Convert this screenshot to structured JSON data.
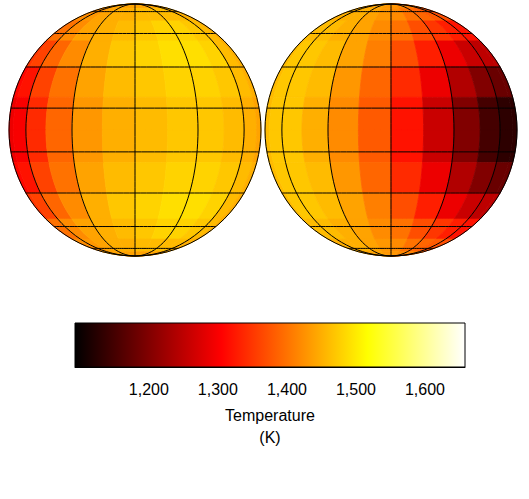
{
  "chart_data": {
    "type": "globe_map",
    "grid": true,
    "tick_labels": "x",
    "lon_edges": [
      -90,
      -75,
      -60,
      -45,
      -30,
      -15,
      0,
      15,
      30,
      45,
      60,
      75,
      90
    ],
    "lat_edges": [
      90,
      75,
      60,
      45,
      30,
      15,
      0,
      -15,
      -30,
      -45,
      -60,
      -75,
      -90
    ],
    "globes": [
      {
        "cells": [
          [
            1440,
            1440,
            1440,
            1440,
            1440,
            1440,
            1440,
            1440,
            1440,
            1440,
            1440,
            1440
          ],
          [
            1420,
            1420,
            1430,
            1440,
            1450,
            1450,
            1460,
            1460,
            1460,
            1460,
            1450,
            1450
          ],
          [
            1390,
            1400,
            1420,
            1440,
            1450,
            1460,
            1470,
            1480,
            1480,
            1470,
            1460,
            1450
          ],
          [
            1350,
            1360,
            1390,
            1420,
            1450,
            1470,
            1480,
            1490,
            1490,
            1480,
            1460,
            1450
          ],
          [
            1310,
            1320,
            1360,
            1400,
            1440,
            1460,
            1470,
            1480,
            1480,
            1470,
            1460,
            1450
          ],
          [
            1290,
            1300,
            1340,
            1390,
            1430,
            1450,
            1460,
            1470,
            1470,
            1460,
            1450,
            1440
          ],
          [
            1290,
            1300,
            1340,
            1390,
            1430,
            1450,
            1460,
            1470,
            1470,
            1460,
            1450,
            1440
          ],
          [
            1310,
            1320,
            1360,
            1400,
            1440,
            1460,
            1470,
            1480,
            1480,
            1470,
            1460,
            1450
          ],
          [
            1350,
            1360,
            1390,
            1420,
            1450,
            1470,
            1480,
            1490,
            1490,
            1480,
            1460,
            1450
          ],
          [
            1390,
            1400,
            1420,
            1440,
            1450,
            1460,
            1470,
            1480,
            1480,
            1470,
            1460,
            1450
          ],
          [
            1420,
            1420,
            1430,
            1440,
            1450,
            1450,
            1460,
            1460,
            1460,
            1460,
            1450,
            1450
          ],
          [
            1440,
            1440,
            1440,
            1440,
            1440,
            1440,
            1440,
            1440,
            1440,
            1440,
            1440,
            1440
          ]
        ]
      },
      {
        "cells": [
          [
            1440,
            1440,
            1440,
            1440,
            1440,
            1430,
            1430,
            1420,
            1420,
            1410,
            1400,
            1400
          ],
          [
            1450,
            1450,
            1450,
            1450,
            1440,
            1430,
            1420,
            1400,
            1390,
            1380,
            1370,
            1370
          ],
          [
            1460,
            1460,
            1460,
            1450,
            1440,
            1420,
            1400,
            1370,
            1350,
            1330,
            1320,
            1320
          ],
          [
            1460,
            1470,
            1470,
            1460,
            1440,
            1410,
            1370,
            1330,
            1290,
            1260,
            1250,
            1250
          ],
          [
            1460,
            1470,
            1470,
            1460,
            1430,
            1390,
            1340,
            1290,
            1240,
            1200,
            1180,
            1180
          ],
          [
            1460,
            1470,
            1470,
            1450,
            1420,
            1380,
            1320,
            1260,
            1200,
            1150,
            1130,
            1130
          ],
          [
            1460,
            1470,
            1470,
            1450,
            1420,
            1380,
            1320,
            1260,
            1200,
            1150,
            1130,
            1130
          ],
          [
            1460,
            1470,
            1470,
            1460,
            1430,
            1390,
            1340,
            1290,
            1240,
            1200,
            1180,
            1180
          ],
          [
            1460,
            1470,
            1470,
            1460,
            1440,
            1410,
            1370,
            1330,
            1290,
            1260,
            1250,
            1250
          ],
          [
            1460,
            1460,
            1460,
            1450,
            1440,
            1420,
            1400,
            1370,
            1350,
            1330,
            1320,
            1320
          ],
          [
            1450,
            1450,
            1450,
            1450,
            1440,
            1430,
            1420,
            1400,
            1390,
            1380,
            1370,
            1370
          ],
          [
            1440,
            1440,
            1440,
            1440,
            1440,
            1430,
            1430,
            1420,
            1420,
            1410,
            1400,
            1400
          ]
        ]
      }
    ],
    "colorbar": {
      "range": [
        1093,
        1658
      ],
      "ticks": [
        1200,
        1300,
        1400,
        1500,
        1600
      ],
      "label": "Temperature (K)"
    }
  }
}
